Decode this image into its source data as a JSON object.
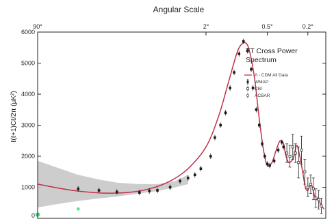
{
  "chart_data": {
    "type": "line",
    "ylabel": "ℓ(ℓ+1)Cℓ/2π (μK²)",
    "top_axis_title": "Angular Scale",
    "annotation": [
      "TT Cross Power",
      "Spectrum"
    ],
    "ylim": [
      0,
      6000
    ],
    "yticks": [
      0,
      1000,
      2000,
      3000,
      4000,
      5000,
      6000
    ],
    "top_ticks": [
      {
        "label": "90°",
        "l": 2
      },
      {
        "label": "2°",
        "l": 90
      },
      {
        "label": "0.5°",
        "l": 360
      },
      {
        "label": "0.2°",
        "l": 900
      }
    ],
    "legend": [
      "Λ - CDM All Data",
      "WMAP",
      "CBI",
      "ACBAR"
    ],
    "colors": {
      "model": "#c0304a",
      "points": "#1a1a1a",
      "band": "#c8c8c8",
      "lowl_point": "#33dd77",
      "axis": "#222222"
    },
    "model_curve": {
      "name": "Λ - CDM All Data",
      "l": [
        2,
        4,
        8,
        15,
        25,
        40,
        60,
        90,
        120,
        150,
        180,
        200,
        220,
        240,
        270,
        300,
        330,
        360,
        400,
        440,
        480,
        520,
        540,
        570,
        600,
        650,
        700,
        750,
        800,
        850,
        900,
        950,
        1000,
        1050,
        1100,
        1150,
        1200,
        1300
      ],
      "values": [
        1100,
        920,
        820,
        830,
        950,
        1200,
        1600,
        2300,
        3300,
        4400,
        5300,
        5600,
        5650,
        5400,
        4500,
        3200,
        2200,
        1700,
        1800,
        2200,
        2500,
        2400,
        2100,
        1850,
        1800,
        1950,
        2350,
        2000,
        1500,
        1000,
        900,
        1100,
        1000,
        700,
        600,
        650,
        450,
        300
      ]
    },
    "cosmic_variance_band": {
      "l": [
        2,
        3,
        5,
        8,
        12,
        20,
        30,
        45,
        60
      ],
      "upper": [
        1850,
        1650,
        1400,
        1250,
        1150,
        1100,
        1100,
        1200,
        1400
      ],
      "lower": [
        350,
        450,
        560,
        640,
        700,
        800,
        880,
        1000,
        1100
      ]
    },
    "wmap_points": {
      "name": "WMAP",
      "l": [
        5,
        8,
        12,
        20,
        25,
        30,
        40,
        50,
        60,
        70,
        80,
        100,
        110,
        125,
        140,
        155,
        170,
        190,
        210,
        230,
        250,
        260,
        280,
        300,
        320,
        340,
        360,
        380,
        420,
        460,
        500,
        520
      ],
      "values": [
        950,
        900,
        850,
        830,
        880,
        900,
        1000,
        1200,
        1300,
        1400,
        1600,
        2000,
        2600,
        3000,
        3400,
        4200,
        4700,
        5300,
        5700,
        5400,
        4800,
        4200,
        3500,
        3000,
        2400,
        2000,
        1750,
        1700,
        1850,
        2200,
        2450,
        2300
      ]
    },
    "lowl_point": {
      "l": 2,
      "value": 120
    },
    "highl_points": {
      "name": "CBI / ACBAR",
      "l": [
        560,
        600,
        640,
        680,
        730,
        780,
        840,
        900,
        960,
        1020,
        1080,
        1150,
        1220
      ],
      "values": [
        2100,
        2000,
        2300,
        2100,
        1800,
        2200,
        1500,
        1000,
        1100,
        950,
        650,
        600,
        400
      ],
      "err": [
        300,
        350,
        400,
        300,
        500,
        450,
        400,
        300,
        300,
        350,
        300,
        300,
        250
      ]
    }
  }
}
